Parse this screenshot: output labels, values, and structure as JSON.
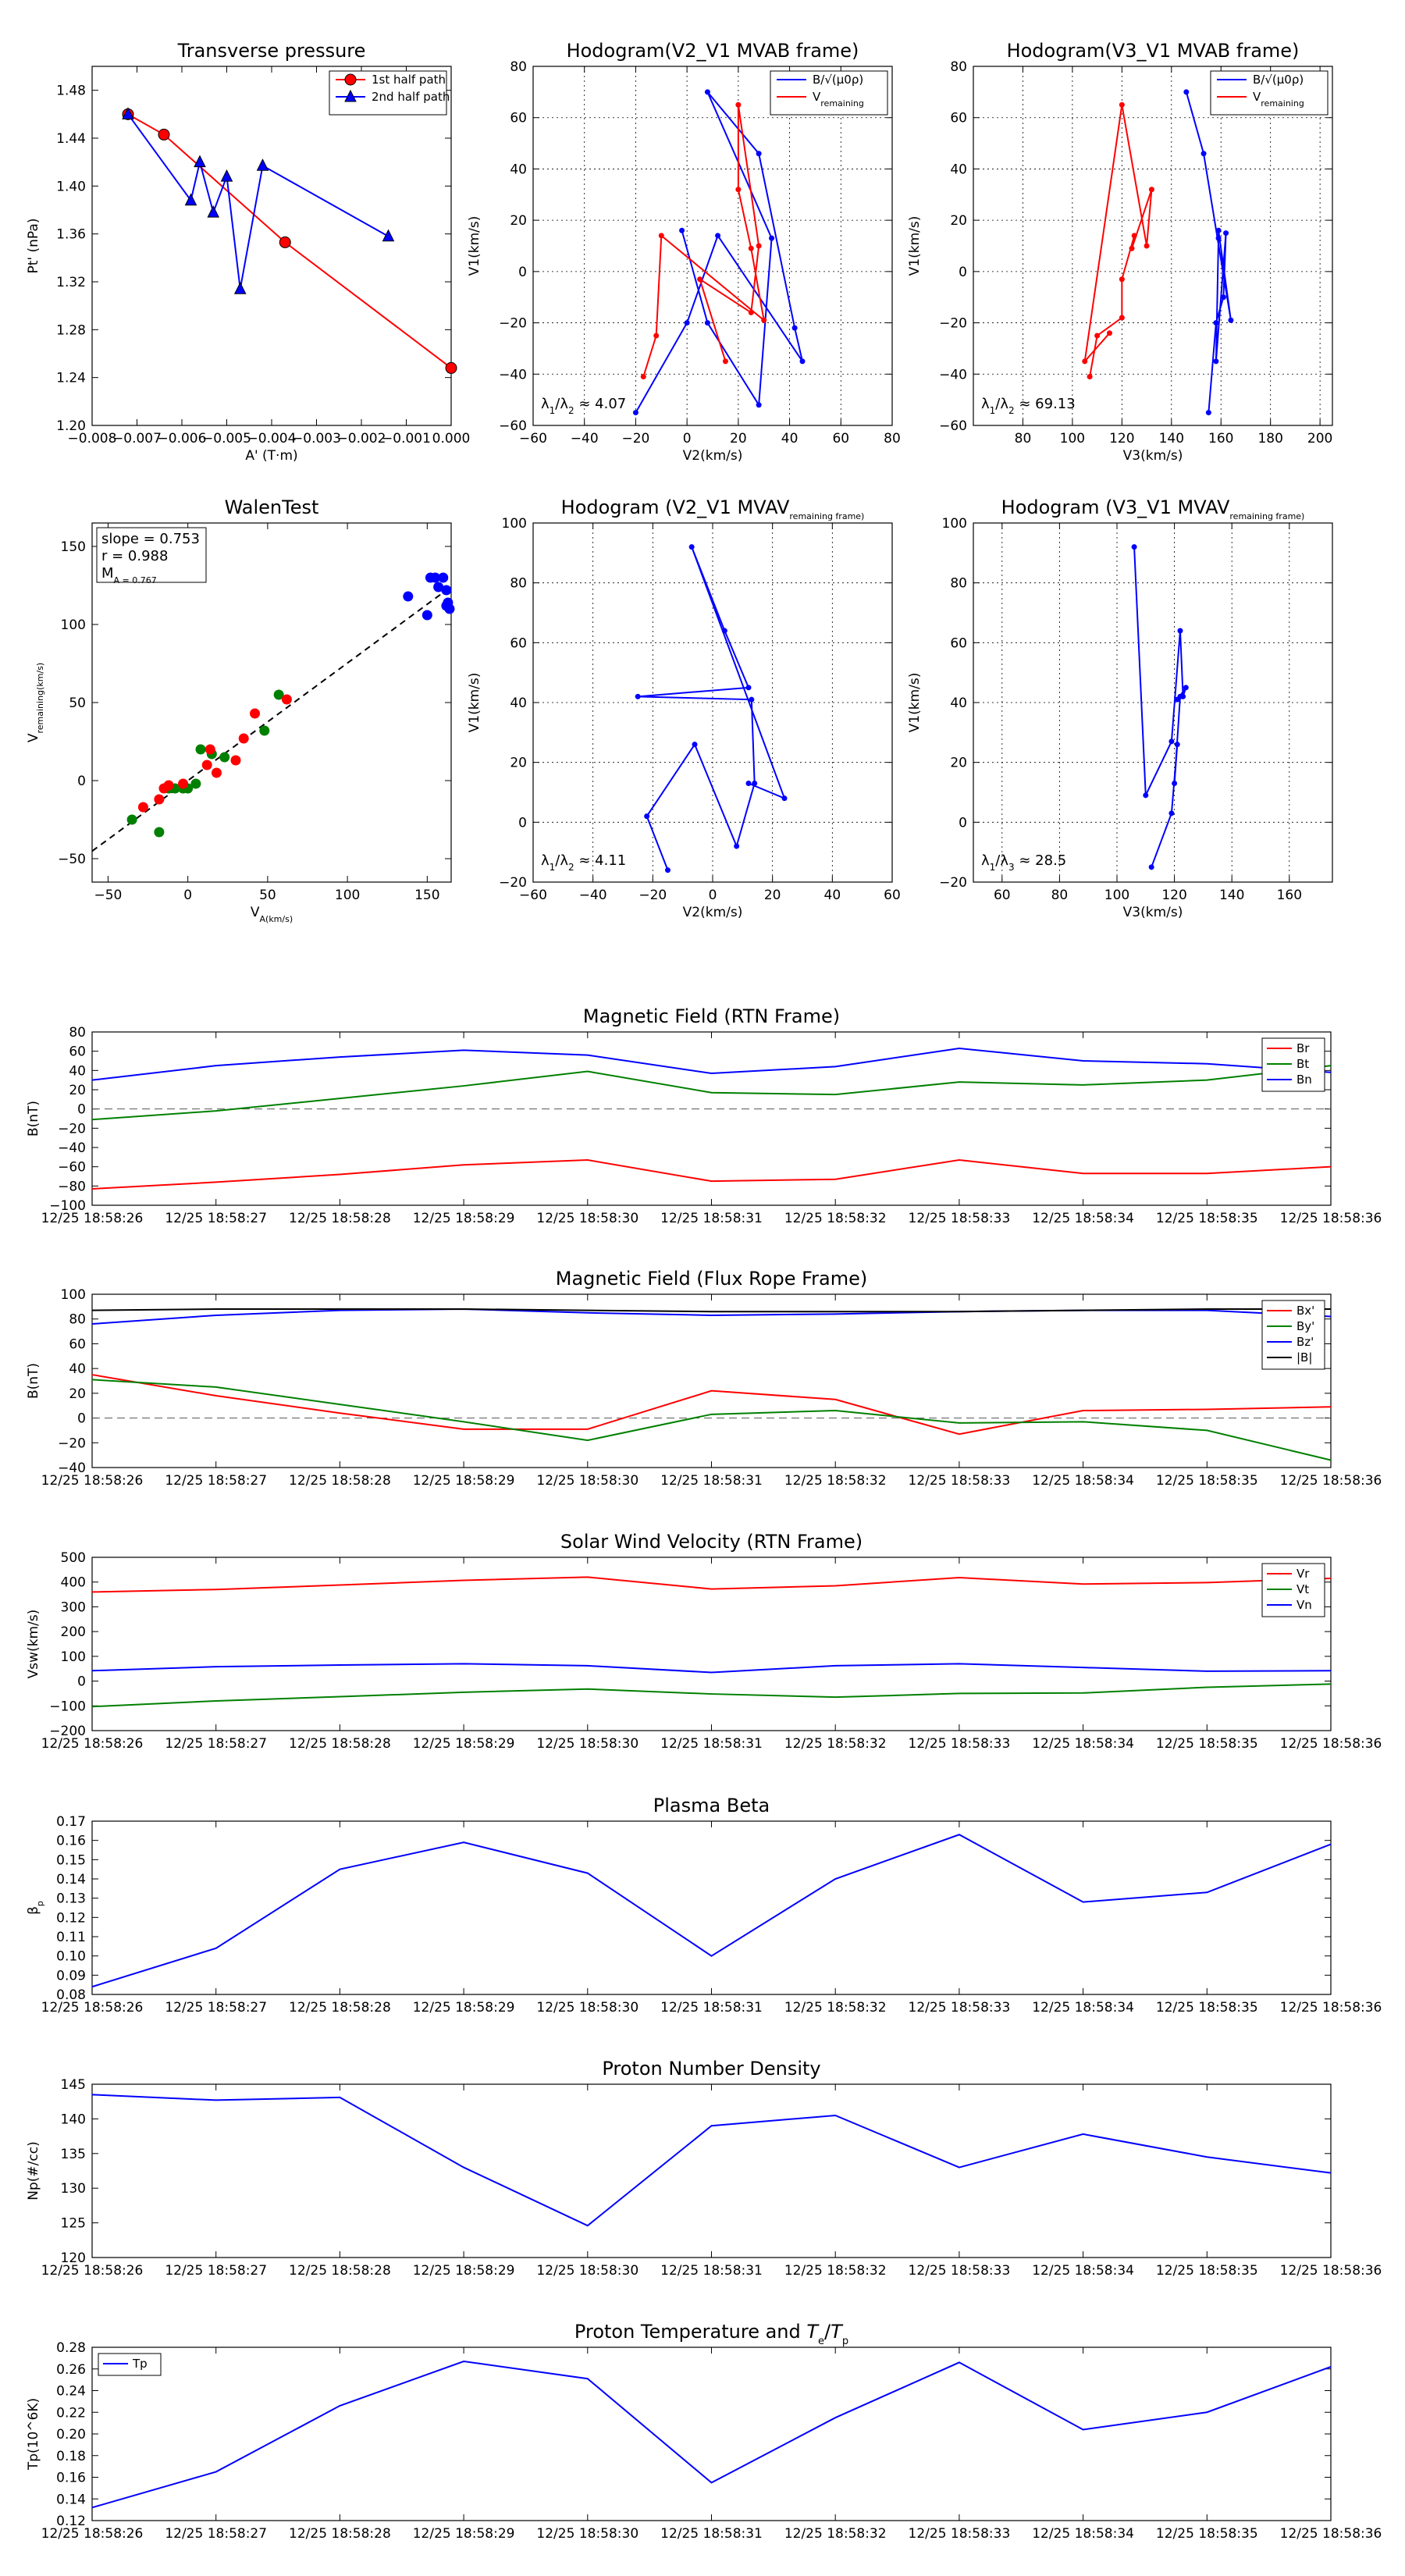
{
  "chart_data": [
    {
      "id": "tp",
      "type": "line",
      "title": "Transverse pressure",
      "xlabel": "A' (T·m)",
      "ylabel": "Pt' (nPa)",
      "xlim": [
        -0.008,
        0.0
      ],
      "ylim": [
        1.2,
        1.5
      ],
      "xticks": [
        -0.008,
        -0.007,
        -0.006,
        -0.005,
        -0.004,
        -0.003,
        -0.002,
        -0.001,
        0.0
      ],
      "xticklabels": [
        "−0.008",
        "−0.007",
        "−0.006",
        "−0.005",
        "−0.004",
        "−0.003",
        "−0.002",
        "−0.001",
        "0.000"
      ],
      "yticks": [
        1.2,
        1.24,
        1.28,
        1.32,
        1.36,
        1.4,
        1.44,
        1.48
      ],
      "yticklabels": [
        "1.20",
        "1.24",
        "1.28",
        "1.32",
        "1.36",
        "1.40",
        "1.44",
        "1.48"
      ],
      "legend_loc": "top-right",
      "series": [
        {
          "name": "1st half path",
          "color": "#ff0000",
          "marker": "circle",
          "x": [
            -0.0072,
            -0.0064,
            -0.0037,
            0.0
          ],
          "y": [
            1.46,
            1.443,
            1.353,
            1.248
          ]
        },
        {
          "name": "2nd half path",
          "color": "#0000ff",
          "marker": "triangle",
          "x": [
            -0.0072,
            -0.0058,
            -0.0056,
            -0.0053,
            -0.005,
            -0.0047,
            -0.0042,
            -0.0014
          ],
          "y": [
            1.46,
            1.388,
            1.42,
            1.378,
            1.408,
            1.314,
            1.417,
            1.358
          ]
        }
      ]
    },
    {
      "id": "h21",
      "type": "line",
      "title": "Hodogram(V2_V1 MVAB frame)",
      "xlabel": "V2(km/s)",
      "ylabel": "V1(km/s)",
      "xlim": [
        -60,
        80
      ],
      "ylim": [
        -60,
        80
      ],
      "xticks": [
        -60,
        -40,
        -20,
        0,
        20,
        40,
        60,
        80
      ],
      "xticklabels": [
        "−60",
        "−40",
        "−20",
        "0",
        "20",
        "40",
        "60",
        "80"
      ],
      "yticks": [
        -60,
        -40,
        -20,
        0,
        20,
        40,
        60,
        80
      ],
      "yticklabels": [
        "−60",
        "−40",
        "−20",
        "0",
        "20",
        "40",
        "60",
        "80"
      ],
      "grid": true,
      "legend_loc": "top-right",
      "annotation": "λ1/λ2 ≈ 4.07",
      "series": [
        {
          "name": "B/√(μ0ρ)",
          "color": "#0000ff",
          "x": [
            -20,
            0,
            12,
            45,
            42,
            28,
            8,
            33,
            28,
            8,
            -2
          ],
          "y": [
            -55,
            -20,
            14,
            -35,
            -22,
            46,
            70,
            13,
            -52,
            -20,
            16
          ]
        },
        {
          "name": "Vremaining",
          "color": "#ff0000",
          "x": [
            -17,
            -12,
            -10,
            30,
            25,
            20,
            20,
            28,
            25,
            5,
            15
          ],
          "y": [
            -41,
            -25,
            14,
            -19,
            9,
            32,
            65,
            10,
            -16,
            -3,
            -35
          ]
        }
      ]
    },
    {
      "id": "h31",
      "type": "line",
      "title": "Hodogram(V3_V1 MVAB frame)",
      "xlabel": "V3(km/s)",
      "ylabel": "V1(km/s)",
      "xlim": [
        60,
        205
      ],
      "ylim": [
        -60,
        80
      ],
      "xticks": [
        80,
        100,
        120,
        140,
        160,
        180,
        200
      ],
      "xticklabels": [
        "80",
        "100",
        "120",
        "140",
        "160",
        "180",
        "200"
      ],
      "yticks": [
        -60,
        -40,
        -20,
        0,
        20,
        40,
        60,
        80
      ],
      "yticklabels": [
        "−60",
        "−40",
        "−20",
        "0",
        "20",
        "40",
        "60",
        "80"
      ],
      "grid": true,
      "legend_loc": "top-right",
      "annotation": "λ1/λ2 ≈ 69.13",
      "series": [
        {
          "name": "B/√(μ0ρ)",
          "color": "#0000ff",
          "x": [
            155,
            158,
            161,
            162,
            158,
            159,
            159,
            164,
            153,
            146
          ],
          "y": [
            -55,
            -20,
            -10,
            15,
            -35,
            13,
            16,
            -19,
            46,
            70
          ]
        },
        {
          "name": "Vremaining",
          "color": "#ff0000",
          "x": [
            107,
            110,
            120,
            120,
            125,
            124,
            132,
            130,
            120,
            105,
            115
          ],
          "y": [
            -41,
            -25,
            -18,
            -3,
            14,
            9,
            32,
            10,
            65,
            -35,
            -24
          ]
        }
      ]
    },
    {
      "id": "walen",
      "type": "scatter",
      "title": "WalenTest",
      "xlabel": "V_A(km/s)",
      "ylabel": "V_remaining(km/s)",
      "xlim": [
        -60,
        165
      ],
      "ylim": [
        -65,
        165
      ],
      "xticks": [
        -50,
        0,
        50,
        100,
        150
      ],
      "xticklabels": [
        "−50",
        "0",
        "50",
        "100",
        "150"
      ],
      "yticks": [
        -50,
        0,
        50,
        100,
        150
      ],
      "yticklabels": [
        "−50",
        "0",
        "50",
        "100",
        "150"
      ],
      "stats": [
        "slope = 0.753",
        "r = 0.988",
        "MA = 0.767"
      ],
      "fit": {
        "slope": 0.753,
        "intercept": 0,
        "x": [
          -60,
          162
        ]
      },
      "series": [
        {
          "name": "green",
          "color": "#008000",
          "x": [
            -35,
            -18,
            5,
            -8,
            -3,
            0,
            -12,
            8,
            15,
            23,
            57,
            48
          ],
          "y": [
            -25,
            -33,
            -2,
            -5,
            -5,
            -5,
            -5,
            20,
            17,
            15,
            55,
            32
          ]
        },
        {
          "name": "red",
          "color": "#ff0000",
          "x": [
            -28,
            -18,
            -15,
            -12,
            -3,
            12,
            14,
            18,
            30,
            35,
            42,
            62
          ],
          "y": [
            -17,
            -12,
            -5,
            -3,
            -2,
            10,
            20,
            5,
            13,
            27,
            43,
            52
          ]
        },
        {
          "name": "blue",
          "color": "#0000ff",
          "x": [
            138,
            152,
            155,
            157,
            160,
            162,
            150,
            163,
            164,
            162
          ],
          "y": [
            118,
            130,
            130,
            124,
            130,
            122,
            106,
            114,
            110,
            112
          ]
        }
      ]
    },
    {
      "id": "hv21",
      "type": "line",
      "title": "Hodogram (V2_V1 MVAVremaining frame)",
      "xlabel": "V2(km/s)",
      "ylabel": "V1(km/s)",
      "xlim": [
        -60,
        60
      ],
      "ylim": [
        -20,
        100
      ],
      "xticks": [
        -60,
        -40,
        -20,
        0,
        20,
        40,
        60
      ],
      "xticklabels": [
        "−60",
        "−40",
        "−20",
        "0",
        "20",
        "40",
        "60"
      ],
      "yticks": [
        -20,
        0,
        20,
        40,
        60,
        80,
        100
      ],
      "yticklabels": [
        "−20",
        "0",
        "20",
        "40",
        "60",
        "80",
        "100"
      ],
      "grid": true,
      "annotation": "λ1/λ2 ≈ 4.11",
      "series": [
        {
          "name": "path",
          "color": "#0000ff",
          "x": [
            -15,
            -22,
            -6,
            8,
            14,
            13,
            -25,
            12,
            4,
            -7,
            24,
            12
          ],
          "y": [
            -16,
            2,
            26,
            -8,
            13,
            41,
            42,
            45,
            64,
            92,
            8,
            13
          ]
        }
      ]
    },
    {
      "id": "hv31",
      "type": "line",
      "title": "Hodogram (V3_V1 MVAVremaining frame)",
      "xlabel": "V3(km/s)",
      "ylabel": "V1(km/s)",
      "xlim": [
        50,
        175
      ],
      "ylim": [
        -20,
        100
      ],
      "xticks": [
        60,
        80,
        100,
        120,
        140,
        160
      ],
      "xticklabels": [
        "60",
        "80",
        "100",
        "120",
        "140",
        "160"
      ],
      "yticks": [
        -20,
        0,
        20,
        40,
        60,
        80,
        100
      ],
      "yticklabels": [
        "−20",
        "0",
        "20",
        "40",
        "60",
        "80",
        "100"
      ],
      "grid": true,
      "annotation": "λ1/λ3 ≈ 28.5",
      "series": [
        {
          "name": "path",
          "color": "#0000ff",
          "x": [
            112,
            119,
            121,
            120,
            122,
            121,
            124,
            123,
            122,
            119,
            110,
            106
          ],
          "y": [
            -15,
            3,
            26,
            13,
            42,
            41,
            45,
            42,
            64,
            27,
            9,
            92
          ]
        }
      ]
    },
    {
      "id": "brtn",
      "type": "line",
      "title": "Magnetic Field (RTN Frame)",
      "ylabel": "B(nT)",
      "ylim": [
        -100,
        80
      ],
      "yticks": [
        -100,
        -80,
        -60,
        -40,
        -20,
        0,
        20,
        40,
        60,
        80
      ],
      "yticklabels": [
        "−100",
        "−80",
        "−60",
        "−40",
        "−20",
        "0",
        "20",
        "40",
        "60",
        "80"
      ],
      "x": [
        "12/25 18:58:26",
        "12/25 18:58:27",
        "12/25 18:58:28",
        "12/25 18:58:29",
        "12/25 18:58:30",
        "12/25 18:58:31",
        "12/25 18:58:32",
        "12/25 18:58:33",
        "12/25 18:58:34",
        "12/25 18:58:35",
        "12/25 18:58:36"
      ],
      "zero_line": true,
      "legend_loc": "top-right",
      "series": [
        {
          "name": "Br",
          "color": "#ff0000",
          "values": [
            -83,
            -76,
            -68,
            -58,
            -53,
            -75,
            -73,
            -53,
            -67,
            -67,
            -60
          ]
        },
        {
          "name": "Bt",
          "color": "#008000",
          "values": [
            -11,
            -2,
            11,
            24,
            39,
            17,
            15,
            28,
            25,
            30,
            45
          ]
        },
        {
          "name": "Bn",
          "color": "#0000ff",
          "values": [
            30,
            45,
            54,
            61,
            56,
            37,
            44,
            63,
            50,
            47,
            38
          ]
        }
      ]
    },
    {
      "id": "bfr",
      "type": "line",
      "title": "Magnetic Field (Flux Rope Frame)",
      "ylabel": "B(nT)",
      "ylim": [
        -40,
        100
      ],
      "yticks": [
        -40,
        -20,
        0,
        20,
        40,
        60,
        80,
        100
      ],
      "yticklabels": [
        "−40",
        "−20",
        "0",
        "20",
        "40",
        "60",
        "80",
        "100"
      ],
      "x": [
        "12/25 18:58:26",
        "12/25 18:58:27",
        "12/25 18:58:28",
        "12/25 18:58:29",
        "12/25 18:58:30",
        "12/25 18:58:31",
        "12/25 18:58:32",
        "12/25 18:58:33",
        "12/25 18:58:34",
        "12/25 18:58:35",
        "12/25 18:58:36"
      ],
      "zero_line": true,
      "legend_loc": "top-right",
      "series": [
        {
          "name": "Bx'",
          "color": "#ff0000",
          "values": [
            35,
            18,
            4,
            -9,
            -9,
            22,
            15,
            -13,
            6,
            7,
            9
          ]
        },
        {
          "name": "By'",
          "color": "#008000",
          "values": [
            31,
            25,
            11,
            -3,
            -18,
            3,
            6,
            -4,
            -3,
            -10,
            -34
          ]
        },
        {
          "name": "Bz'",
          "color": "#0000ff",
          "values": [
            76,
            83,
            87,
            88,
            85,
            83,
            84,
            86,
            87,
            87,
            82
          ]
        },
        {
          "name": "|B|",
          "color": "#000000",
          "values": [
            87,
            88,
            88,
            88,
            87,
            86,
            86,
            86,
            87,
            88,
            88
          ]
        }
      ]
    },
    {
      "id": "vsw",
      "type": "line",
      "title": "Solar Wind Velocity (RTN Frame)",
      "ylabel": "Vsw(km/s)",
      "ylim": [
        -200,
        500
      ],
      "yticks": [
        -200,
        -100,
        0,
        100,
        200,
        300,
        400,
        500
      ],
      "yticklabels": [
        "−200",
        "−100",
        "0",
        "100",
        "200",
        "300",
        "400",
        "500"
      ],
      "x": [
        "12/25 18:58:26",
        "12/25 18:58:27",
        "12/25 18:58:28",
        "12/25 18:58:29",
        "12/25 18:58:30",
        "12/25 18:58:31",
        "12/25 18:58:32",
        "12/25 18:58:33",
        "12/25 18:58:34",
        "12/25 18:58:35",
        "12/25 18:58:36"
      ],
      "legend_loc": "top-right",
      "series": [
        {
          "name": "Vr",
          "color": "#ff0000",
          "values": [
            360,
            370,
            388,
            407,
            420,
            372,
            385,
            418,
            392,
            398,
            415
          ]
        },
        {
          "name": "Vt",
          "color": "#008000",
          "values": [
            -103,
            -80,
            -63,
            -45,
            -32,
            -52,
            -65,
            -50,
            -48,
            -25,
            -12
          ]
        },
        {
          "name": "Vn",
          "color": "#0000ff",
          "values": [
            42,
            58,
            65,
            70,
            62,
            35,
            62,
            70,
            55,
            40,
            42
          ]
        }
      ]
    },
    {
      "id": "beta",
      "type": "line",
      "title": "Plasma Beta",
      "ylabel": "βp",
      "ylim": [
        0.08,
        0.17
      ],
      "yticks": [
        0.08,
        0.09,
        0.1,
        0.11,
        0.12,
        0.13,
        0.14,
        0.15,
        0.16,
        0.17
      ],
      "yticklabels": [
        "0.08",
        "0.09",
        "0.10",
        "0.11",
        "0.12",
        "0.13",
        "0.14",
        "0.15",
        "0.16",
        "0.17"
      ],
      "x": [
        "12/25 18:58:26",
        "12/25 18:58:27",
        "12/25 18:58:28",
        "12/25 18:58:29",
        "12/25 18:58:30",
        "12/25 18:58:31",
        "12/25 18:58:32",
        "12/25 18:58:33",
        "12/25 18:58:34",
        "12/25 18:58:35",
        "12/25 18:58:36"
      ],
      "series": [
        {
          "name": "beta",
          "color": "#0000ff",
          "values": [
            0.084,
            0.104,
            0.145,
            0.159,
            0.143,
            0.1,
            0.14,
            0.163,
            0.128,
            0.133,
            0.158
          ]
        }
      ]
    },
    {
      "id": "np",
      "type": "line",
      "title": "Proton Number Density",
      "ylabel": "Np(#/cc)",
      "ylim": [
        120,
        145
      ],
      "yticks": [
        120,
        125,
        130,
        135,
        140,
        145
      ],
      "yticklabels": [
        "120",
        "125",
        "130",
        "135",
        "140",
        "145"
      ],
      "x": [
        "12/25 18:58:26",
        "12/25 18:58:27",
        "12/25 18:58:28",
        "12/25 18:58:29",
        "12/25 18:58:30",
        "12/25 18:58:31",
        "12/25 18:58:32",
        "12/25 18:58:33",
        "12/25 18:58:34",
        "12/25 18:58:35",
        "12/25 18:58:36"
      ],
      "series": [
        {
          "name": "Np",
          "color": "#0000ff",
          "values": [
            143.5,
            142.7,
            143.1,
            133.0,
            124.6,
            139.0,
            140.5,
            133.0,
            137.8,
            134.5,
            132.2
          ]
        }
      ]
    },
    {
      "id": "tpk",
      "type": "line",
      "title": "Proton Temperature and Te/Tp",
      "ylabel": "Tp(10^6K)",
      "ylim": [
        0.12,
        0.28
      ],
      "yticks": [
        0.12,
        0.14,
        0.16,
        0.18,
        0.2,
        0.22,
        0.24,
        0.26,
        0.28
      ],
      "yticklabels": [
        "0.12",
        "0.14",
        "0.16",
        "0.18",
        "0.20",
        "0.22",
        "0.24",
        "0.26",
        "0.28"
      ],
      "x": [
        "12/25 18:58:26",
        "12/25 18:58:27",
        "12/25 18:58:28",
        "12/25 18:58:29",
        "12/25 18:58:30",
        "12/25 18:58:31",
        "12/25 18:58:32",
        "12/25 18:58:33",
        "12/25 18:58:34",
        "12/25 18:58:35",
        "12/25 18:58:36"
      ],
      "legend_loc": "top-left",
      "series": [
        {
          "name": "Tp",
          "color": "#0000ff",
          "values": [
            0.132,
            0.165,
            0.226,
            0.267,
            0.251,
            0.155,
            0.215,
            0.266,
            0.204,
            0.22,
            0.262
          ]
        }
      ]
    }
  ]
}
